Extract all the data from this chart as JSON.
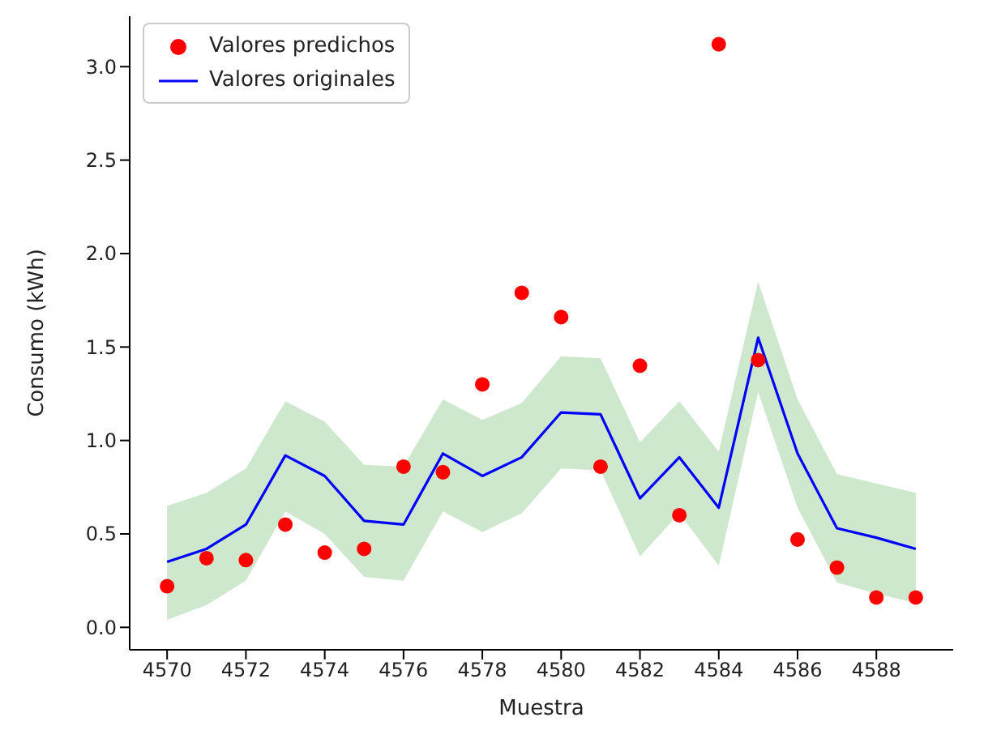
{
  "chart_data": {
    "type": "line",
    "xlabel": "Muestra",
    "ylabel": "Consumo (kWh)",
    "x": [
      4570,
      4571,
      4572,
      4573,
      4574,
      4575,
      4576,
      4577,
      4578,
      4579,
      4580,
      4581,
      4582,
      4583,
      4584,
      4585,
      4586,
      4587,
      4588,
      4589
    ],
    "series": [
      {
        "name": "Valores predichos",
        "type": "scatter",
        "color": "#ff0000",
        "marker": "circle",
        "values": [
          0.22,
          0.37,
          0.36,
          0.55,
          0.4,
          0.42,
          0.86,
          0.83,
          1.3,
          1.79,
          1.66,
          0.86,
          1.4,
          0.6,
          3.12,
          1.43,
          0.47,
          0.32,
          0.16,
          0.16
        ]
      },
      {
        "name": "Valores originales",
        "color": "#0000ff",
        "values": [
          0.35,
          0.42,
          0.55,
          0.92,
          0.81,
          0.57,
          0.55,
          0.93,
          0.81,
          0.91,
          1.15,
          1.14,
          0.69,
          0.91,
          0.64,
          1.55,
          0.93,
          0.53,
          0.48,
          0.42
        ],
        "lower": [
          0.04,
          0.12,
          0.25,
          0.62,
          0.5,
          0.27,
          0.25,
          0.62,
          0.51,
          0.61,
          0.85,
          0.84,
          0.38,
          0.61,
          0.33,
          1.26,
          0.64,
          0.24,
          0.18,
          0.13
        ],
        "upper": [
          0.65,
          0.72,
          0.85,
          1.21,
          1.1,
          0.87,
          0.86,
          1.22,
          1.11,
          1.2,
          1.45,
          1.44,
          0.99,
          1.21,
          0.94,
          1.85,
          1.22,
          0.82,
          0.77,
          0.72
        ]
      }
    ],
    "xlim": [
      4569.05,
      4589.95
    ],
    "xticks": [
      4570,
      4572,
      4574,
      4576,
      4578,
      4580,
      4582,
      4584,
      4586,
      4588
    ],
    "ylim": [
      -0.12,
      3.27
    ],
    "yticks": [
      {
        "value": 0,
        "label": "0.0"
      },
      {
        "value": 0.5,
        "label": "0.5"
      },
      {
        "value": 1,
        "label": "1.0"
      },
      {
        "value": 1.5,
        "label": "1.5"
      },
      {
        "value": 2,
        "label": "2.0"
      },
      {
        "value": 2.5,
        "label": "2.5"
      },
      {
        "value": 3,
        "label": "3.0"
      }
    ],
    "grid": false,
    "legend": "top left"
  }
}
